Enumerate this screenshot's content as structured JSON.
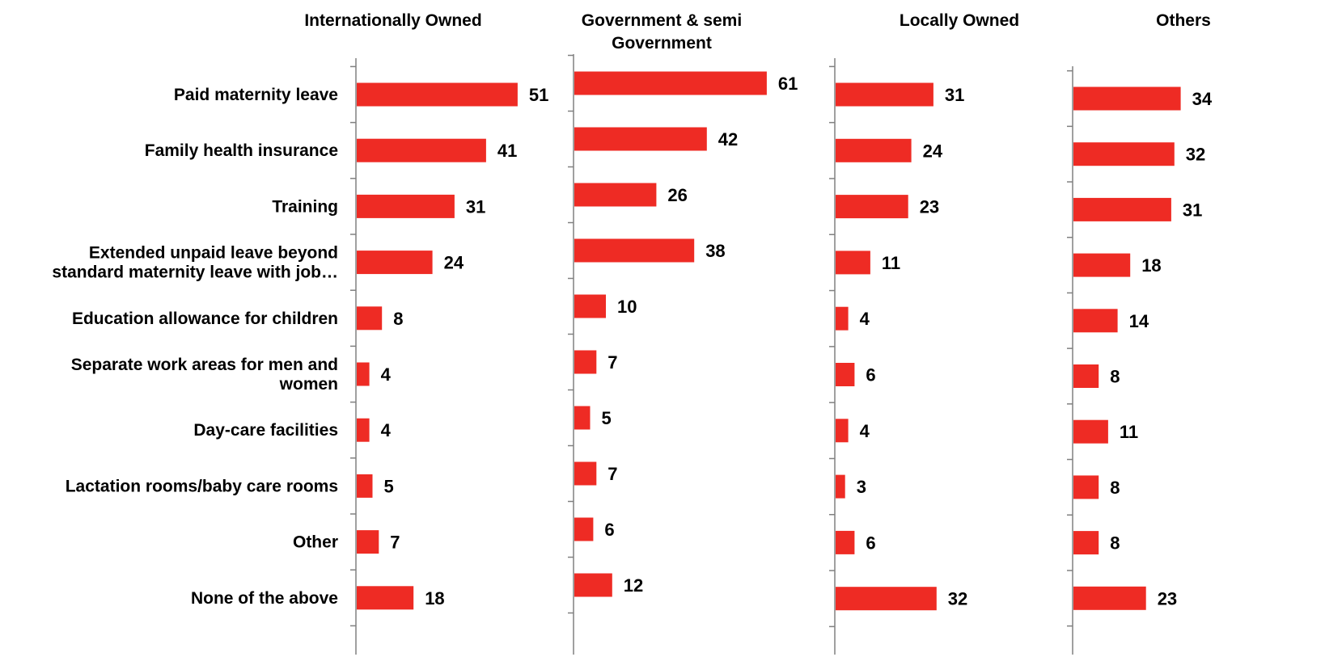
{
  "colors": {
    "bar": "#ee2b24",
    "axis": "#808080",
    "text": "#000000"
  },
  "chart_data": {
    "type": "bar",
    "orientation": "horizontal",
    "categories": [
      [
        "Paid maternity leave"
      ],
      [
        "Family health insurance"
      ],
      [
        "Training"
      ],
      [
        "Extended unpaid leave beyond",
        "standard maternity leave with job…"
      ],
      [
        "Education allowance for children"
      ],
      [
        "Separate work areas for men and",
        "women"
      ],
      [
        "Day-care facilities"
      ],
      [
        "Lactation rooms/baby care rooms"
      ],
      [
        "Other"
      ],
      [
        "None of the above"
      ]
    ],
    "series": [
      {
        "name": [
          "Internationally Owned"
        ],
        "values": [
          51,
          41,
          31,
          24,
          8,
          4,
          4,
          5,
          7,
          18
        ]
      },
      {
        "name": [
          "Government & semi",
          "Government"
        ],
        "values": [
          61,
          42,
          26,
          38,
          10,
          7,
          5,
          7,
          6,
          12
        ]
      },
      {
        "name": [
          "Locally Owned"
        ],
        "values": [
          31,
          24,
          23,
          11,
          4,
          6,
          4,
          3,
          6,
          32
        ]
      },
      {
        "name": [
          "Others"
        ],
        "values": [
          34,
          32,
          31,
          18,
          14,
          8,
          11,
          8,
          8,
          23
        ]
      }
    ],
    "xlim": [
      0,
      70
    ],
    "data_labels": true,
    "grid": false,
    "legend": "none"
  }
}
